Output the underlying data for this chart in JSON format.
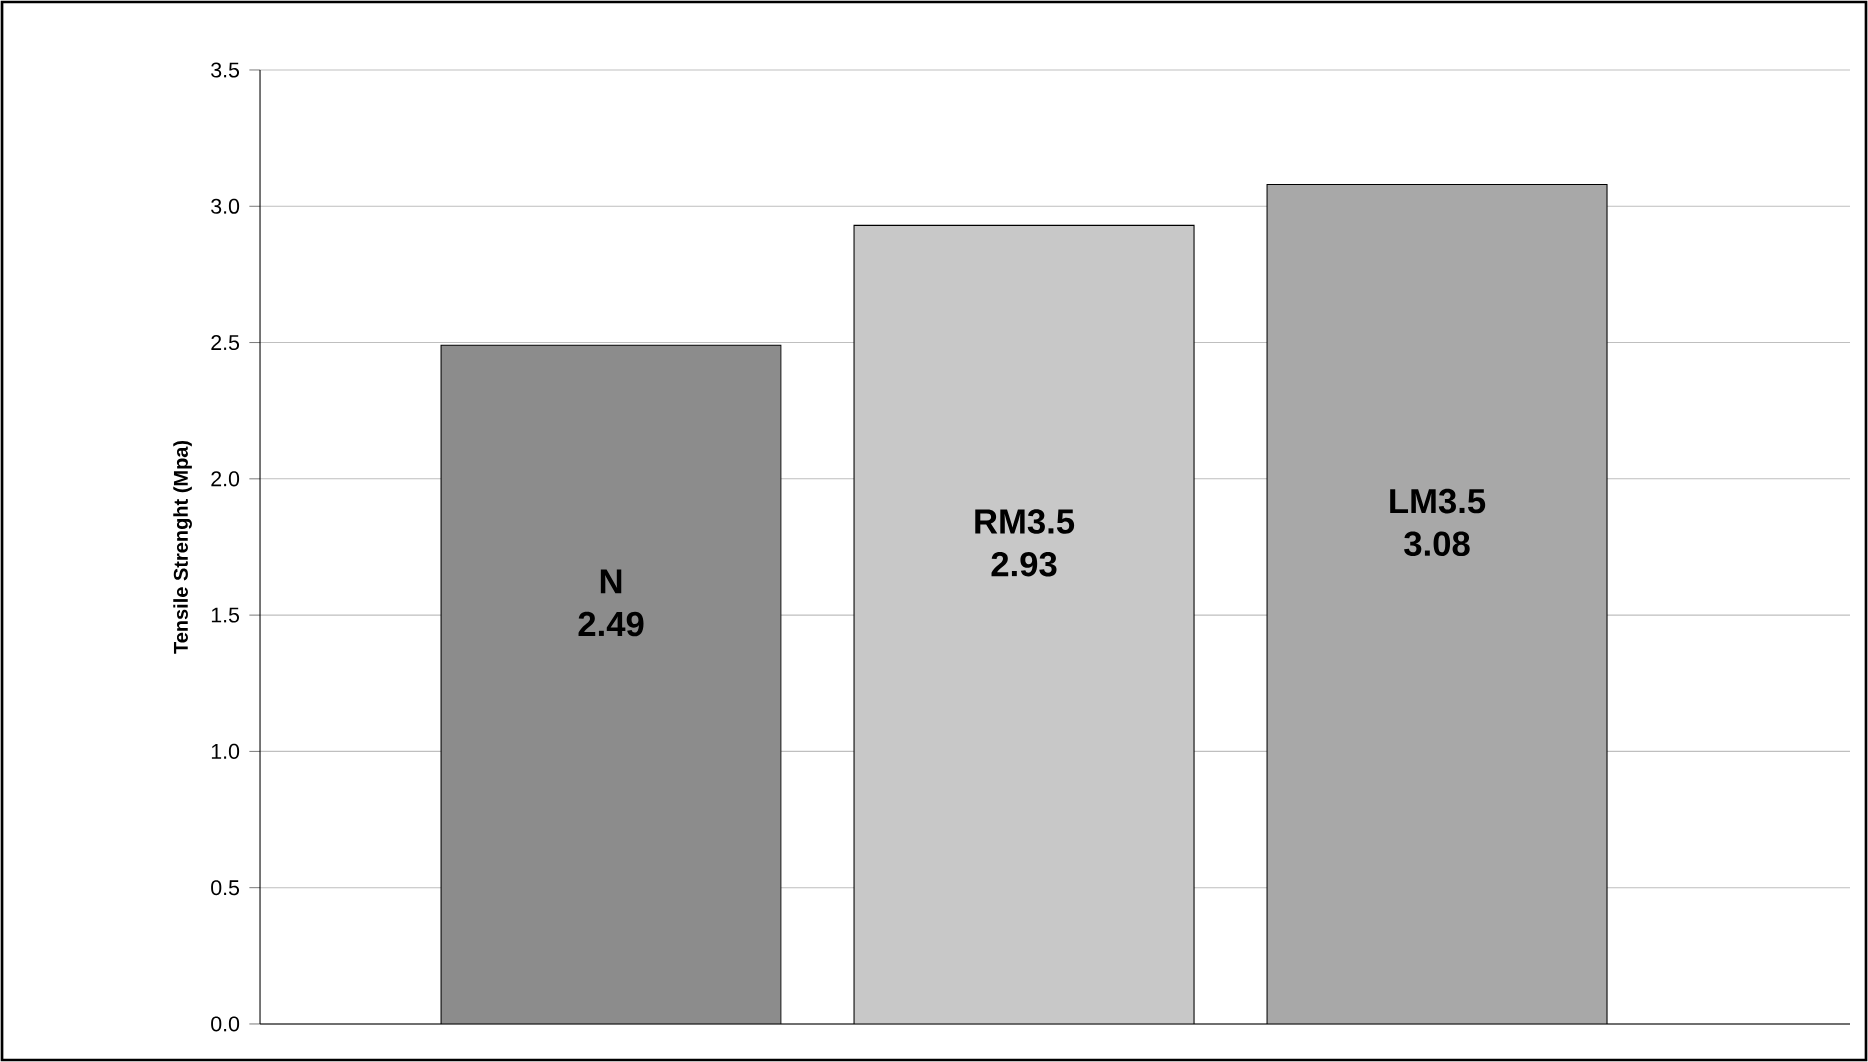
{
  "chart_data": {
    "type": "bar",
    "ylabel": "Tensile Strenght (Mpa)",
    "categories": [
      "N",
      "RM3.5",
      "LM3.5"
    ],
    "values": [
      2.49,
      2.93,
      3.08
    ],
    "colors": [
      "#8c8c8c",
      "#c8c8c8",
      "#a8a8a8"
    ],
    "ylim": [
      0,
      3.5
    ],
    "yticks": [
      {
        "value": 0,
        "label": "0.0"
      },
      {
        "value": 0.5,
        "label": "0.5"
      },
      {
        "value": 1,
        "label": "1.0"
      },
      {
        "value": 1.5,
        "label": "1.5"
      },
      {
        "value": 2,
        "label": "2.0"
      },
      {
        "value": 2.5,
        "label": "2.5"
      },
      {
        "value": 3,
        "label": "3.0"
      },
      {
        "value": 3.5,
        "label": "3.5"
      }
    ],
    "grid": "y",
    "data_labels": true
  }
}
